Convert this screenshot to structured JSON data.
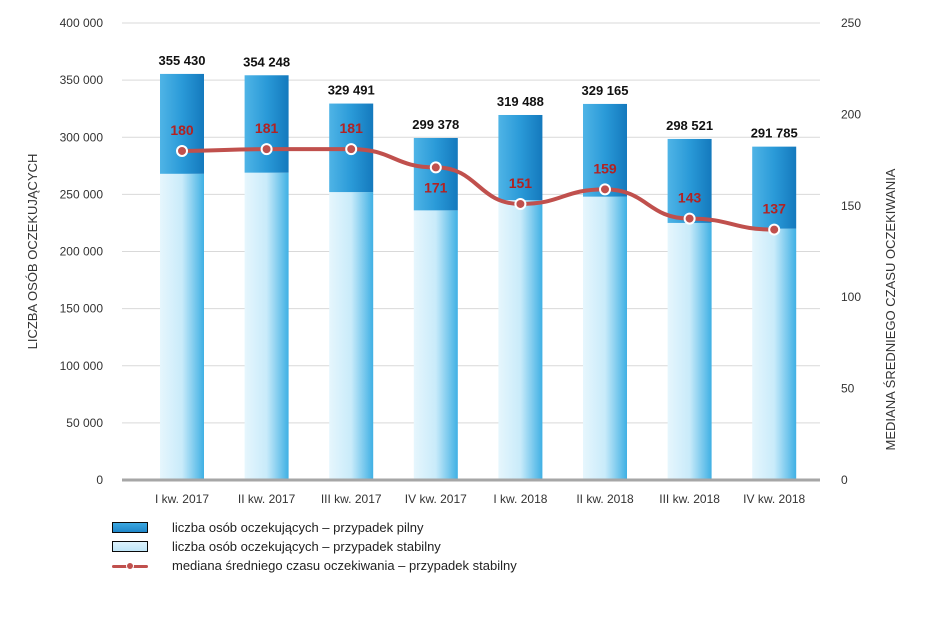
{
  "chart_data": {
    "type": "bar",
    "stacked": true,
    "categories": [
      "I kw. 2017",
      "II kw. 2017",
      "III kw. 2017",
      "IV kw. 2017",
      "I kw. 2018",
      "II kw. 2018",
      "III kw. 2018",
      "IV kw. 2018"
    ],
    "series": [
      {
        "name": "liczba osób oczekujących – przypadek stabilny",
        "axis": "left",
        "color": "#bfe6f8",
        "values": [
          268000,
          269000,
          252000,
          236000,
          245000,
          248000,
          225000,
          220000
        ]
      },
      {
        "name": "liczba osób oczekujących – przypadek pilny",
        "axis": "left",
        "color": "#2a96d4",
        "values": [
          87430,
          85248,
          77491,
          63378,
          74488,
          81165,
          73521,
          71785
        ]
      },
      {
        "name": "mediana średniego czasu oczekiwania – przypadek stabilny",
        "type": "line",
        "axis": "right",
        "color": "#c0504d",
        "values": [
          180,
          181,
          181,
          171,
          151,
          159,
          143,
          137
        ]
      }
    ],
    "total_labels": [
      "355 430",
      "354 248",
      "329 491",
      "299 378",
      "319 488",
      "329 165",
      "298 521",
      "291 785"
    ],
    "line_labels": [
      "180",
      "181",
      "181",
      "171",
      "151",
      "159",
      "143",
      "137"
    ],
    "ylabel": "LICZBA OSÓB OCZEKUJĄCYCH",
    "y2label": "MEDIANA ŚREDNIEGO  CZASU OCZEKIWANIA",
    "ylim": [
      0,
      400000
    ],
    "y2lim": [
      0,
      250
    ],
    "yticks": [
      0,
      50000,
      100000,
      150000,
      200000,
      250000,
      300000,
      350000,
      400000
    ],
    "ytick_labels": [
      "0",
      "50 000",
      "100 000",
      "150 000",
      "200 000",
      "250 000",
      "300 000",
      "350 000",
      "400 000"
    ],
    "y2ticks": [
      0,
      50,
      100,
      150,
      200,
      250
    ],
    "y2tick_labels": [
      "0",
      "50",
      "100",
      "150",
      "200",
      "250"
    ],
    "grid": true,
    "legend_position": "bottom-left"
  },
  "legend": {
    "items": [
      {
        "label": "liczba osób oczekujących – przypadek pilny"
      },
      {
        "label": "liczba osób oczekujących – przypadek stabilny"
      },
      {
        "label": "mediana średniego czasu oczekiwania – przypadek stabilny"
      }
    ]
  }
}
